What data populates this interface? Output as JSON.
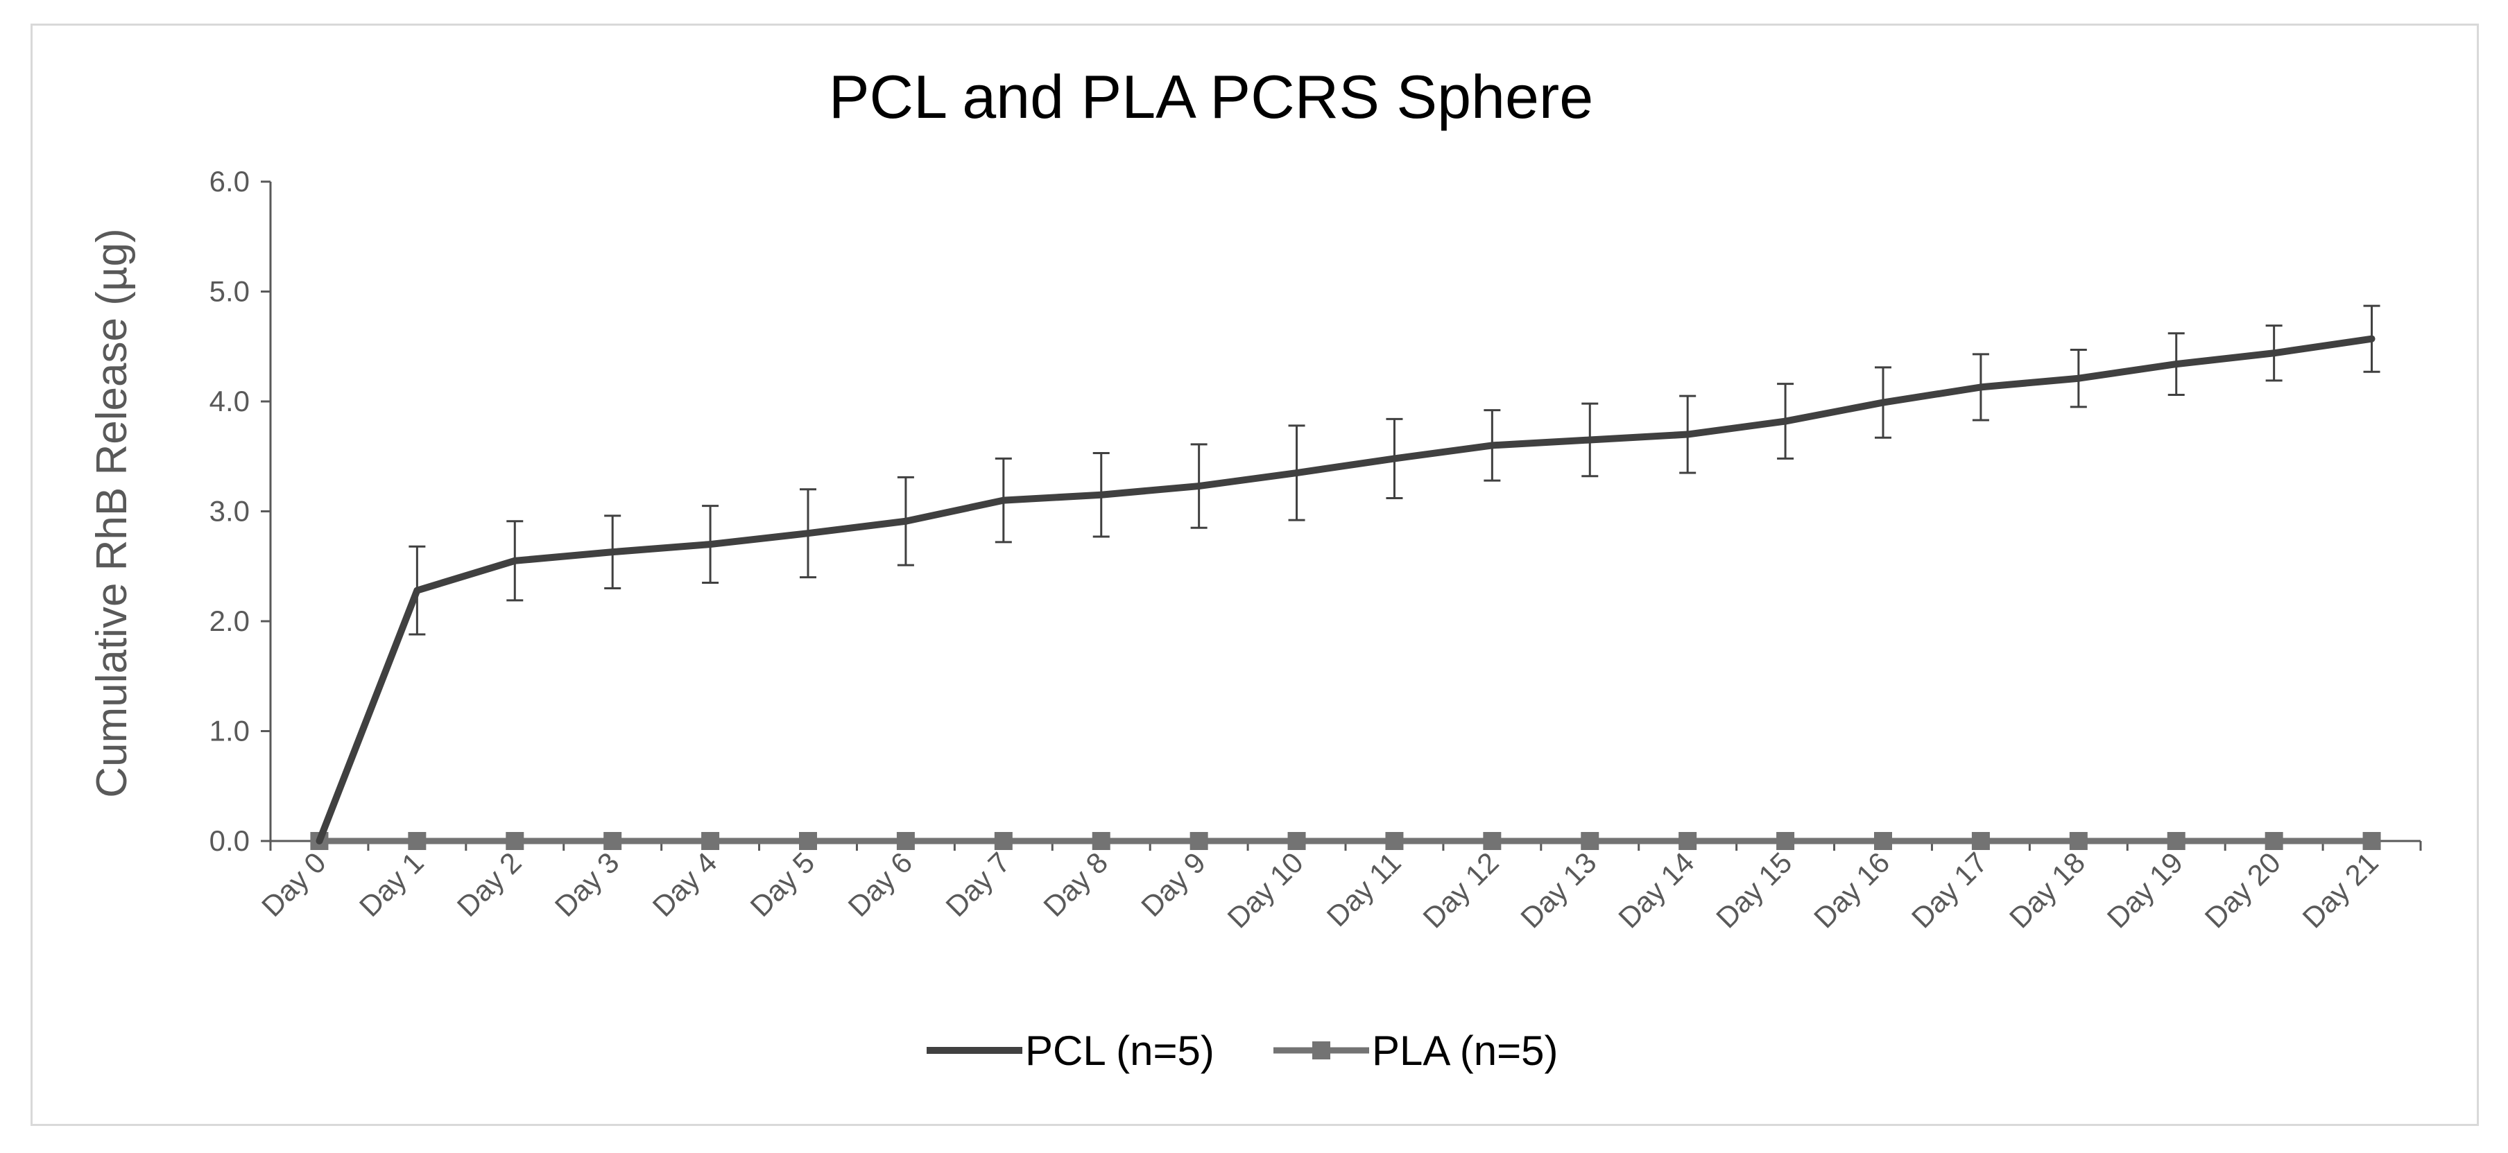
{
  "chart_data": {
    "type": "line",
    "title": "PCL and PLA PCRS Sphere",
    "xlabel": "",
    "ylabel": "Cumulative  RhB  Release (µg)",
    "categories": [
      "Day 0",
      "Day 1",
      "Day 2",
      "Day 3",
      "Day 4",
      "Day 5",
      "Day 6",
      "Day 7",
      "Day 8",
      "Day 9",
      "Day 10",
      "Day 11",
      "Day 12",
      "Day 13",
      "Day 14",
      "Day 15",
      "Day 16",
      "Day 17",
      "Day 18",
      "Day 19",
      "Day 20",
      "Day 21"
    ],
    "yticks": [
      "0.0",
      "1.0",
      "2.0",
      "3.0",
      "4.0",
      "5.0",
      "6.0"
    ],
    "ylim": [
      0,
      6
    ],
    "legend_position": "bottom",
    "series": [
      {
        "name": "PCL (n=5)",
        "color": "#404040",
        "marker": "none",
        "values": [
          0.0,
          2.28,
          2.55,
          2.63,
          2.7,
          2.8,
          2.91,
          3.1,
          3.15,
          3.23,
          3.35,
          3.48,
          3.6,
          3.65,
          3.7,
          3.82,
          3.99,
          4.13,
          4.21,
          4.34,
          4.44,
          4.57
        ],
        "error": [
          0.0,
          0.4,
          0.36,
          0.33,
          0.35,
          0.4,
          0.4,
          0.38,
          0.38,
          0.38,
          0.43,
          0.36,
          0.32,
          0.33,
          0.35,
          0.34,
          0.32,
          0.3,
          0.26,
          0.28,
          0.25,
          0.3
        ]
      },
      {
        "name": "PLA (n=5)",
        "color": "#737373",
        "marker": "square",
        "values": [
          0.0,
          0.0,
          0.0,
          0.0,
          0.0,
          0.0,
          0.0,
          0.0,
          0.0,
          0.0,
          0.0,
          0.0,
          0.0,
          0.0,
          0.0,
          0.0,
          0.0,
          0.0,
          0.0,
          0.0,
          0.0,
          0.0
        ]
      }
    ]
  }
}
